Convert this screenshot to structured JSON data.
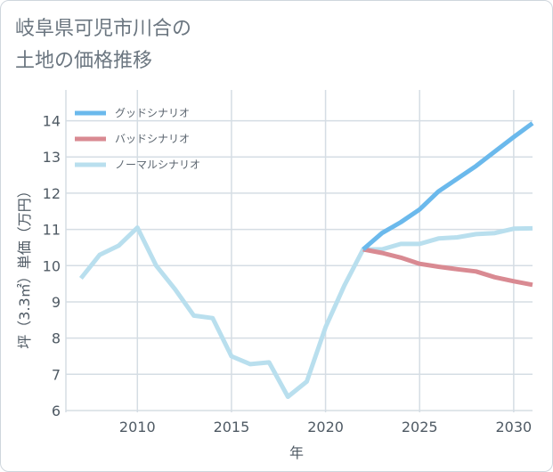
{
  "title_line1": "岐阜県可児市川合の",
  "title_line2": "土地の価格推移",
  "colors": {
    "good": "#6bb9ec",
    "bad": "#d98a92",
    "normal": "#b9dfee",
    "grid": "#d5dde4",
    "axis_text": "#4f5a64"
  },
  "chart_data": {
    "type": "line",
    "title": "岐阜県可児市川合の土地の価格推移",
    "xlabel": "年",
    "ylabel": "坪（3.3㎡）単価（万円）",
    "xlim": [
      2006.2,
      2031
    ],
    "ylim": [
      5.95,
      14.85
    ],
    "xticks": [
      2010,
      2015,
      2020,
      2025,
      2030
    ],
    "yticks": [
      6,
      7,
      8,
      9,
      10,
      11,
      12,
      13,
      14
    ],
    "legend_position": "top-left",
    "series": [
      {
        "name": "グッドシナリオ",
        "color": "#6bb9ec",
        "x": [
          2022,
          2023,
          2024,
          2025,
          2026,
          2027,
          2028,
          2029,
          2030,
          2031
        ],
        "values": [
          10.45,
          10.9,
          11.2,
          11.55,
          12.05,
          12.4,
          12.75,
          13.15,
          13.55,
          13.93
        ]
      },
      {
        "name": "バッドシナリオ",
        "color": "#d98a92",
        "x": [
          2022,
          2023,
          2024,
          2025,
          2026,
          2027,
          2028,
          2029,
          2030,
          2031
        ],
        "values": [
          10.45,
          10.35,
          10.22,
          10.05,
          9.97,
          9.9,
          9.84,
          9.68,
          9.57,
          9.47
        ]
      },
      {
        "name": "ノーマルシナリオ",
        "color": "#b9dfee",
        "x": [
          2007,
          2008,
          2009,
          2010,
          2011,
          2012,
          2013,
          2014,
          2015,
          2016,
          2017,
          2018,
          2019,
          2020,
          2021,
          2022,
          2023,
          2024,
          2025,
          2026,
          2027,
          2028,
          2029,
          2030,
          2031
        ],
        "values": [
          9.65,
          10.3,
          10.55,
          11.05,
          10.0,
          9.35,
          8.62,
          8.55,
          7.5,
          7.28,
          7.33,
          6.38,
          6.8,
          8.3,
          9.45,
          10.45,
          10.45,
          10.6,
          10.6,
          10.75,
          10.78,
          10.87,
          10.9,
          11.02,
          11.03
        ]
      }
    ]
  }
}
